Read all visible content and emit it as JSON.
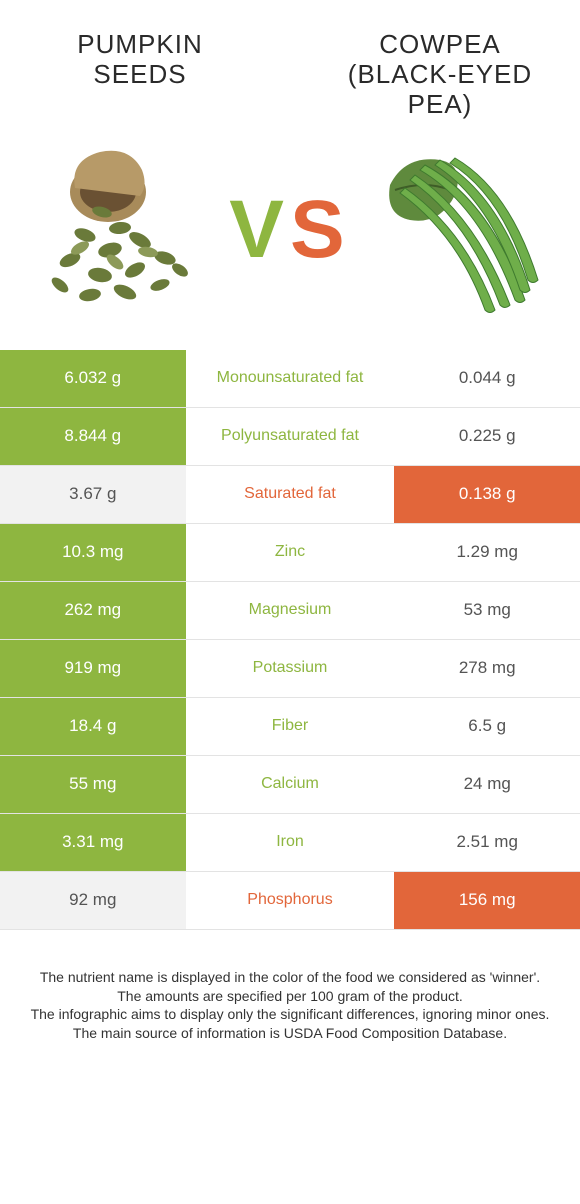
{
  "titles": {
    "left": "PUMPKIN SEEDS",
    "right": "COWPEA (BLACK-EYED PEA)"
  },
  "vs": {
    "v": "V",
    "s": "S"
  },
  "colors": {
    "green": "#8eb640",
    "orange": "#e2663a",
    "grey": "#f2f2f2",
    "text_grey": "#545454",
    "white": "#ffffff"
  },
  "rows": [
    {
      "left": "6.032 g",
      "label": "Monounsaturated fat",
      "right": "0.044 g",
      "winner": "left"
    },
    {
      "left": "8.844 g",
      "label": "Polyunsaturated fat",
      "right": "0.225 g",
      "winner": "left"
    },
    {
      "left": "3.67 g",
      "label": "Saturated fat",
      "right": "0.138 g",
      "winner": "right"
    },
    {
      "left": "10.3 mg",
      "label": "Zinc",
      "right": "1.29 mg",
      "winner": "left"
    },
    {
      "left": "262 mg",
      "label": "Magnesium",
      "right": "53 mg",
      "winner": "left"
    },
    {
      "left": "919 mg",
      "label": "Potassium",
      "right": "278 mg",
      "winner": "left"
    },
    {
      "left": "18.4 g",
      "label": "Fiber",
      "right": "6.5 g",
      "winner": "left"
    },
    {
      "left": "55 mg",
      "label": "Calcium",
      "right": "24 mg",
      "winner": "left"
    },
    {
      "left": "3.31 mg",
      "label": "Iron",
      "right": "2.51 mg",
      "winner": "left"
    },
    {
      "left": "92 mg",
      "label": "Phosphorus",
      "right": "156 mg",
      "winner": "right"
    }
  ],
  "footer": [
    "The nutrient name is displayed in the color of the food we considered as 'winner'.",
    "The amounts are specified per 100 gram of the product.",
    "The infographic aims to display only the significant differences, ignoring minor ones.",
    "The main source of information is USDA Food Composition Database."
  ]
}
